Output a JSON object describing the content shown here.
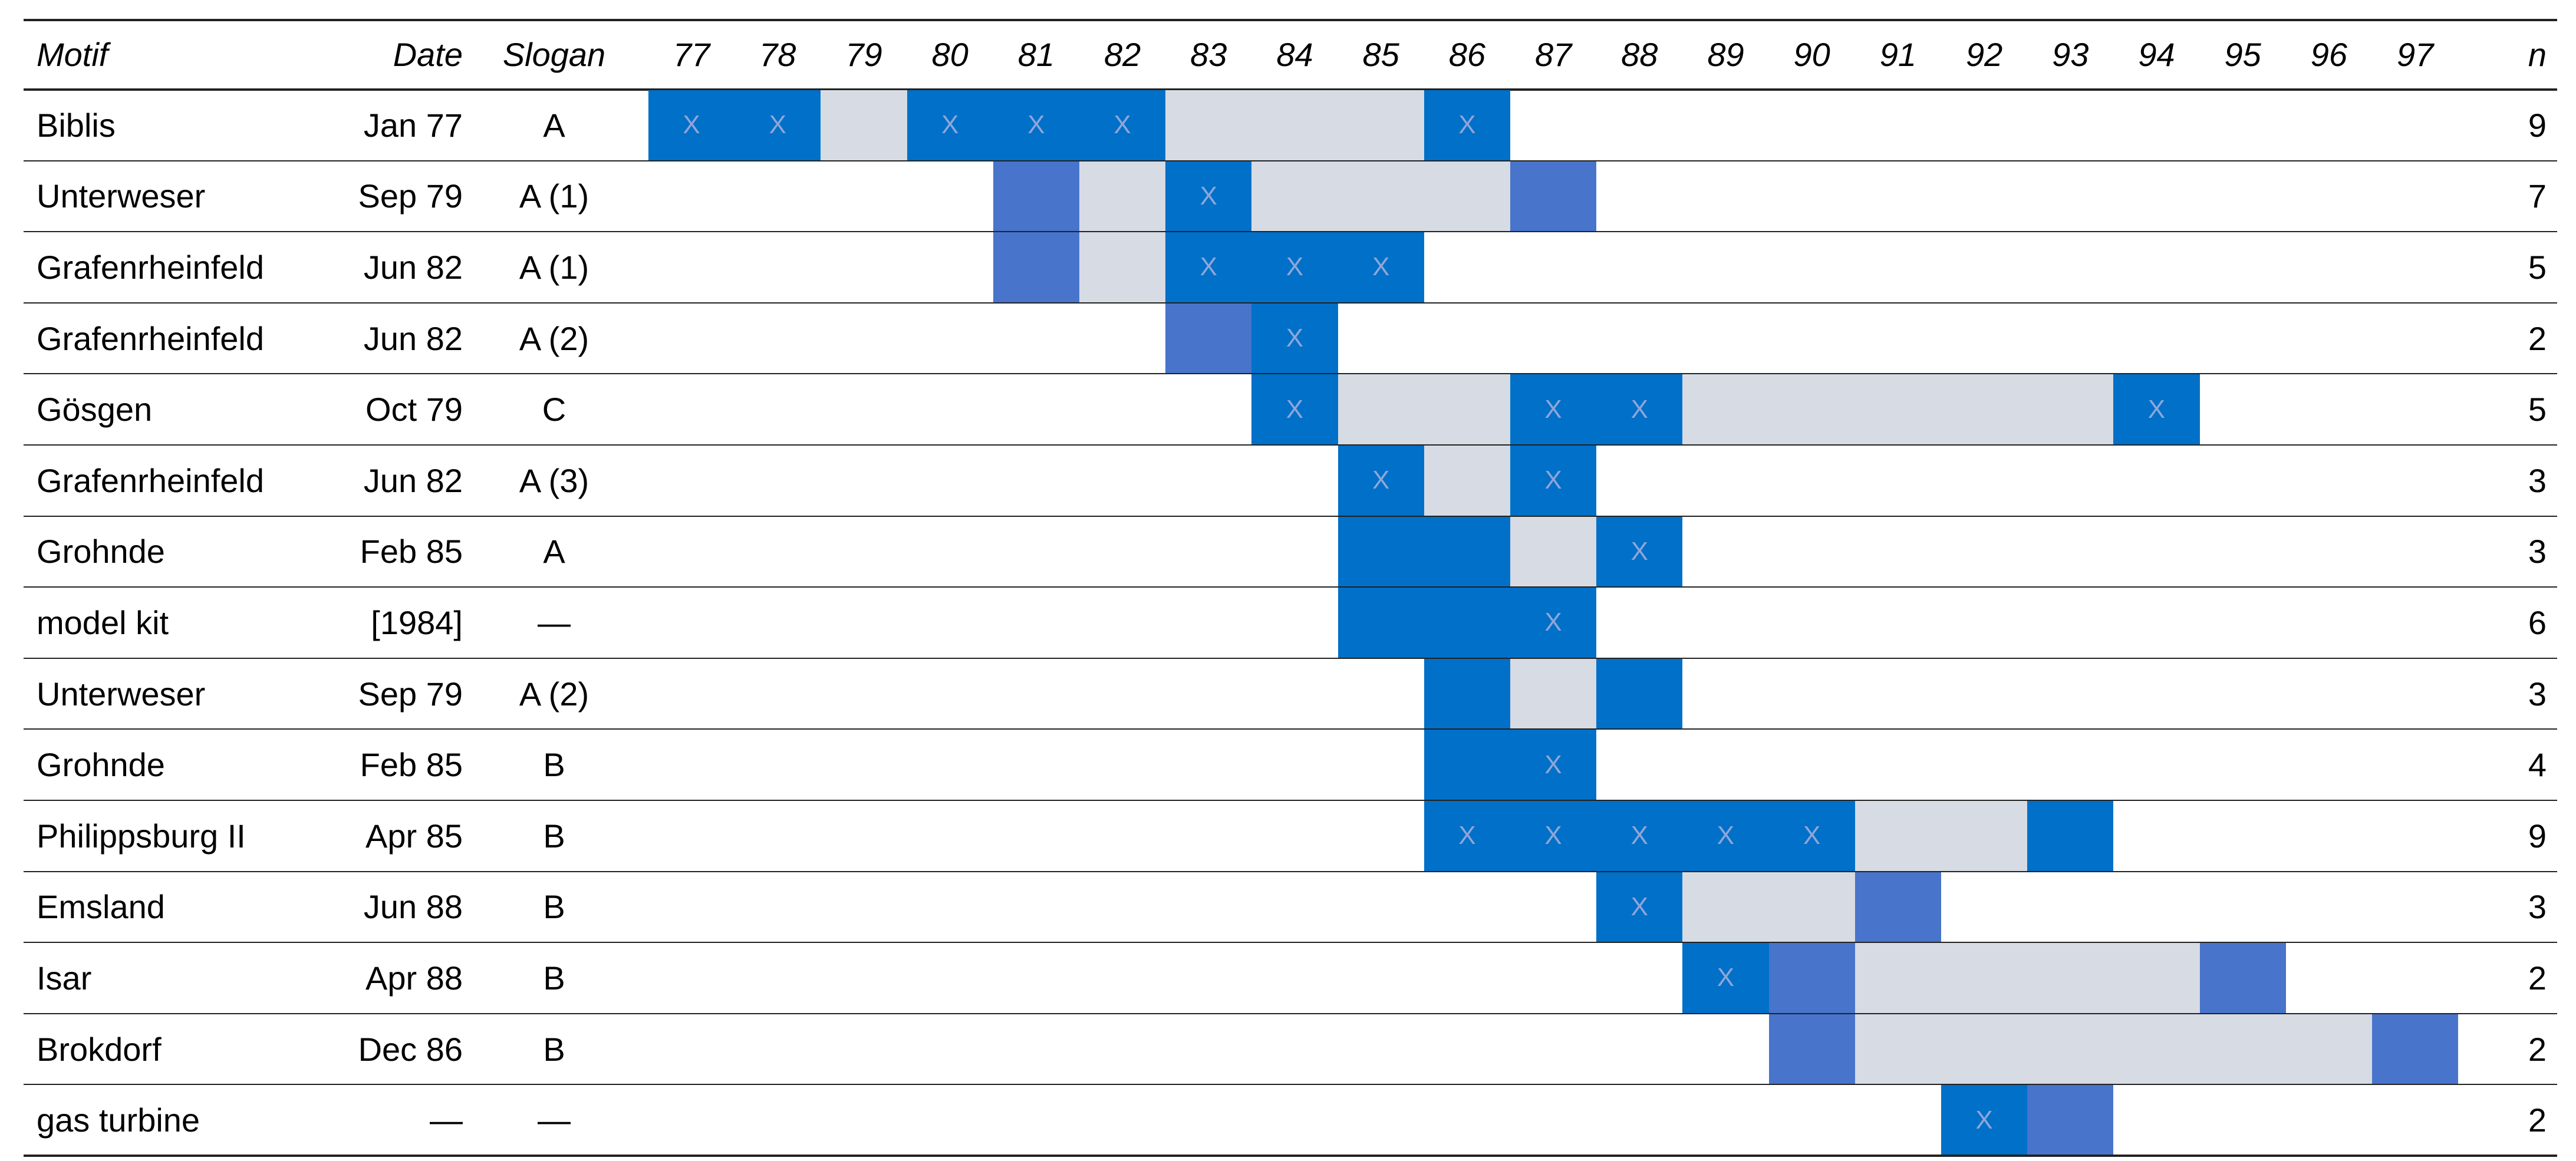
{
  "header": {
    "motif": "Motif",
    "date": "Date",
    "slogan": "Slogan",
    "years": [
      "77",
      "78",
      "79",
      "80",
      "81",
      "82",
      "83",
      "84",
      "85",
      "86",
      "87",
      "88",
      "89",
      "90",
      "91",
      "92",
      "93",
      "94",
      "95",
      "96",
      "97"
    ],
    "n": "n"
  },
  "x_mark": "X",
  "colors": {
    "full": "#0070c8",
    "gap": "#d6dbe4",
    "medium": "#4874cb"
  },
  "rows": [
    {
      "motif": "Biblis",
      "date": "Jan 77",
      "slogan": "A",
      "n": "9",
      "segments": [
        {
          "from": "77",
          "to": "78",
          "type": "full"
        },
        {
          "from": "79",
          "to": "79",
          "type": "gap"
        },
        {
          "from": "80",
          "to": "82",
          "type": "full"
        },
        {
          "from": "83",
          "to": "85",
          "type": "gap"
        },
        {
          "from": "86",
          "to": "86",
          "type": "full"
        }
      ],
      "x_years": [
        "77",
        "78",
        "80",
        "81",
        "82",
        "86"
      ]
    },
    {
      "motif": "Unterweser",
      "date": "Sep 79",
      "slogan": "A (1)",
      "n": "7",
      "segments": [
        {
          "from": "81",
          "to": "81",
          "type": "medium"
        },
        {
          "from": "82",
          "to": "82",
          "type": "gap"
        },
        {
          "from": "83",
          "to": "83",
          "type": "full"
        },
        {
          "from": "84",
          "to": "86",
          "type": "gap"
        },
        {
          "from": "87",
          "to": "87",
          "type": "medium"
        }
      ],
      "x_years": [
        "83"
      ]
    },
    {
      "motif": "Grafenrheinfeld",
      "date": "Jun 82",
      "slogan": "A (1)",
      "n": "5",
      "segments": [
        {
          "from": "81",
          "to": "81",
          "type": "medium"
        },
        {
          "from": "82",
          "to": "82",
          "type": "gap"
        },
        {
          "from": "83",
          "to": "85",
          "type": "full"
        }
      ],
      "x_years": [
        "83",
        "84",
        "85"
      ]
    },
    {
      "motif": "Grafenrheinfeld",
      "date": "Jun 82",
      "slogan": "A (2)",
      "n": "2",
      "segments": [
        {
          "from": "83",
          "to": "83",
          "type": "medium"
        },
        {
          "from": "84",
          "to": "84",
          "type": "full"
        }
      ],
      "x_years": [
        "84"
      ]
    },
    {
      "motif": "Gösgen",
      "date": "Oct 79",
      "slogan": "C",
      "n": "5",
      "segments": [
        {
          "from": "84",
          "to": "84",
          "type": "full"
        },
        {
          "from": "85",
          "to": "86",
          "type": "gap"
        },
        {
          "from": "87",
          "to": "88",
          "type": "full"
        },
        {
          "from": "89",
          "to": "93",
          "type": "gap"
        },
        {
          "from": "94",
          "to": "94",
          "type": "full"
        }
      ],
      "x_years": [
        "84",
        "87",
        "88",
        "94"
      ]
    },
    {
      "motif": "Grafenrheinfeld",
      "date": "Jun 82",
      "slogan": "A (3)",
      "n": "3",
      "segments": [
        {
          "from": "85",
          "to": "85",
          "type": "full"
        },
        {
          "from": "86",
          "to": "86",
          "type": "gap"
        },
        {
          "from": "87",
          "to": "87",
          "type": "full"
        }
      ],
      "x_years": [
        "85",
        "87"
      ]
    },
    {
      "motif": "Grohnde",
      "date": "Feb 85",
      "slogan": "A",
      "n": "3",
      "segments": [
        {
          "from": "85",
          "to": "86",
          "type": "full"
        },
        {
          "from": "87",
          "to": "87",
          "type": "gap"
        },
        {
          "from": "88",
          "to": "88",
          "type": "full"
        }
      ],
      "x_years": [
        "88"
      ]
    },
    {
      "motif": "model kit",
      "date": "[1984]",
      "slogan": "—",
      "n": "6",
      "segments": [
        {
          "from": "85",
          "to": "87",
          "type": "full"
        }
      ],
      "x_years": [
        "87"
      ]
    },
    {
      "motif": "Unterweser",
      "date": "Sep 79",
      "slogan": "A (2)",
      "n": "3",
      "segments": [
        {
          "from": "86",
          "to": "86",
          "type": "full"
        },
        {
          "from": "87",
          "to": "87",
          "type": "gap"
        },
        {
          "from": "88",
          "to": "88",
          "type": "full"
        }
      ],
      "x_years": []
    },
    {
      "motif": "Grohnde",
      "date": "Feb 85",
      "slogan": "B",
      "n": "4",
      "segments": [
        {
          "from": "86",
          "to": "87",
          "type": "full"
        }
      ],
      "x_years": [
        "87"
      ]
    },
    {
      "motif": "Philippsburg II",
      "date": "Apr 85",
      "slogan": "B",
      "n": "9",
      "segments": [
        {
          "from": "86",
          "to": "90",
          "type": "full"
        },
        {
          "from": "91",
          "to": "92",
          "type": "gap"
        },
        {
          "from": "93",
          "to": "93",
          "type": "full"
        }
      ],
      "x_years": [
        "86",
        "87",
        "88",
        "89",
        "90"
      ]
    },
    {
      "motif": "Emsland",
      "date": "Jun 88",
      "slogan": "B",
      "n": "3",
      "segments": [
        {
          "from": "88",
          "to": "88",
          "type": "full"
        },
        {
          "from": "89",
          "to": "90",
          "type": "gap"
        },
        {
          "from": "91",
          "to": "91",
          "type": "medium"
        }
      ],
      "x_years": [
        "88"
      ]
    },
    {
      "motif": "Isar",
      "date": "Apr 88",
      "slogan": "B",
      "n": "2",
      "segments": [
        {
          "from": "89",
          "to": "89",
          "type": "full"
        },
        {
          "from": "90",
          "to": "90",
          "type": "medium"
        },
        {
          "from": "91",
          "to": "94",
          "type": "gap"
        },
        {
          "from": "95",
          "to": "95",
          "type": "medium"
        }
      ],
      "x_years": [
        "89"
      ]
    },
    {
      "motif": "Brokdorf",
      "date": "Dec 86",
      "slogan": "B",
      "n": "2",
      "segments": [
        {
          "from": "90",
          "to": "90",
          "type": "medium"
        },
        {
          "from": "91",
          "to": "96",
          "type": "gap"
        },
        {
          "from": "97",
          "to": "97",
          "type": "medium"
        }
      ],
      "x_years": []
    },
    {
      "motif": "gas turbine",
      "date": "—",
      "slogan": "—",
      "n": "2",
      "segments": [
        {
          "from": "92",
          "to": "92",
          "type": "full"
        },
        {
          "from": "93",
          "to": "93",
          "type": "medium"
        }
      ],
      "x_years": [
        "92"
      ]
    }
  ]
}
